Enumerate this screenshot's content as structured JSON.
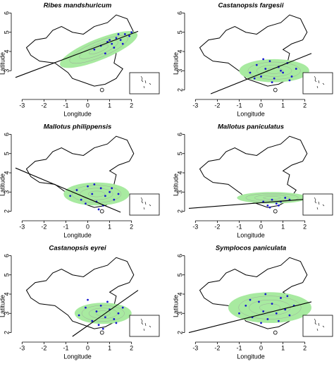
{
  "chart_data": [
    {
      "type": "scatter",
      "title": "Ribes mandshuricum",
      "xlabel": "Longitude",
      "ylabel": "Latitude",
      "xlim": [
        -3.3,
        2.3
      ],
      "ylim": [
        1.8,
        6.2
      ],
      "xticks": [
        -3,
        -2,
        -1,
        0,
        1,
        2
      ],
      "yticks": [
        3,
        4,
        5,
        6
      ],
      "ellipse": {
        "cx": 0.5,
        "cy": 4.1,
        "rx": 1.9,
        "ry": 0.55,
        "angle": -22,
        "color": "#a8eaa0"
      },
      "fit": {
        "x": [
          -3.3,
          2.3
        ],
        "y": [
          2.65,
          5.05
        ]
      },
      "point_color": "#1515d0",
      "x": [
        0.3,
        0.6,
        0.9,
        1.1,
        1.3,
        1.5,
        1.7,
        1.9,
        0.8,
        1.2,
        1.6,
        2.0,
        1.0,
        1.4
      ],
      "y": [
        4.1,
        4.3,
        4.5,
        4.4,
        4.7,
        4.6,
        4.9,
        4.8,
        3.9,
        4.2,
        4.4,
        5.0,
        4.6,
        4.9
      ]
    },
    {
      "type": "scatter",
      "title": "Castanopsis fargesii",
      "xlabel": "Longitude",
      "ylabel": "Latitude",
      "xlim": [
        -3.3,
        2.3
      ],
      "ylim": [
        1.8,
        6.2
      ],
      "xticks": [
        -3,
        -2,
        -1,
        0,
        1,
        2
      ],
      "yticks": [
        2,
        3,
        4,
        5,
        6
      ],
      "ellipse": {
        "cx": 0.6,
        "cy": 3.0,
        "rx": 1.6,
        "ry": 0.6,
        "angle": 0,
        "color": "#a8eaa0"
      },
      "fit": {
        "x": [
          -2.3,
          2.3
        ],
        "y": [
          1.8,
          3.9
        ]
      },
      "point_color": "#1515d0",
      "x": [
        -0.5,
        -0.2,
        0.0,
        0.2,
        0.4,
        0.6,
        0.8,
        1.0,
        1.2,
        1.4,
        1.6,
        0.1,
        0.5,
        0.9,
        1.3,
        -0.3
      ],
      "y": [
        2.9,
        3.3,
        2.7,
        3.1,
        3.5,
        2.6,
        3.2,
        2.9,
        3.4,
        2.7,
        3.1,
        3.6,
        2.4,
        3.0,
        2.5,
        2.6
      ]
    },
    {
      "type": "scatter",
      "title": "Mallotus philippensis",
      "xlabel": "Longitude",
      "ylabel": "Latitude",
      "xlim": [
        -3.3,
        2.3
      ],
      "ylim": [
        1.8,
        6.2
      ],
      "xticks": [
        -3,
        -2,
        -1,
        0,
        1,
        2
      ],
      "yticks": [
        2,
        3,
        4,
        5,
        6
      ],
      "ellipse": {
        "cx": 0.4,
        "cy": 2.9,
        "rx": 1.5,
        "ry": 0.6,
        "angle": 0,
        "color": "#a8eaa0"
      },
      "fit": {
        "x": [
          -3.3,
          1.5
        ],
        "y": [
          4.25,
          1.95
        ]
      },
      "point_color": "#1515d0",
      "x": [
        -0.8,
        -0.5,
        -0.3,
        0.0,
        0.2,
        0.4,
        0.6,
        0.8,
        1.0,
        1.2,
        1.4,
        -0.1,
        0.3,
        0.7,
        1.1,
        0.5
      ],
      "y": [
        2.8,
        3.1,
        2.6,
        3.3,
        2.9,
        2.5,
        3.2,
        2.8,
        3.0,
        2.6,
        2.9,
        2.4,
        3.4,
        2.3,
        3.2,
        2.1
      ]
    },
    {
      "type": "scatter",
      "title": "Mallotus paniculatus",
      "xlabel": "Longitude",
      "ylabel": "Latitude",
      "xlim": [
        -3.3,
        2.3
      ],
      "ylim": [
        1.8,
        6.2
      ],
      "xticks": [
        -3,
        -2,
        -1,
        0,
        1,
        2
      ],
      "yticks": [
        2,
        3,
        4,
        5,
        6
      ],
      "ellipse": {
        "cx": 0.5,
        "cy": 2.7,
        "rx": 1.6,
        "ry": 0.3,
        "angle": 0,
        "color": "#a8eaa0"
      },
      "fit": {
        "x": [
          -3.3,
          2.3
        ],
        "y": [
          2.15,
          2.65
        ]
      },
      "point_color": "#1515d0",
      "x": [
        0.1,
        0.3,
        0.5,
        0.7,
        0.9,
        1.1,
        1.3,
        0.4,
        0.8
      ],
      "y": [
        2.5,
        2.3,
        2.6,
        2.4,
        2.5,
        2.7,
        2.6,
        2.2,
        2.3
      ]
    },
    {
      "type": "scatter",
      "title": "Castanopsis eyrei",
      "xlabel": "Longitude",
      "ylabel": "Latitude",
      "xlim": [
        -3.3,
        2.3
      ],
      "ylim": [
        1.8,
        6.2
      ],
      "xticks": [
        -3,
        -2,
        -1,
        0,
        1,
        2
      ],
      "yticks": [
        2,
        3,
        4,
        5,
        6
      ],
      "ellipse": {
        "cx": 0.7,
        "cy": 3.0,
        "rx": 1.3,
        "ry": 0.55,
        "angle": 0,
        "color": "#a8eaa0"
      },
      "fit": {
        "x": [
          -0.7,
          2.3
        ],
        "y": [
          1.8,
          4.2
        ]
      },
      "point_color": "#1515d0",
      "x": [
        -0.4,
        -0.1,
        0.2,
        0.4,
        0.6,
        0.8,
        1.0,
        1.2,
        1.4,
        1.6,
        0.5,
        0.9,
        1.3,
        0.0,
        0.7
      ],
      "y": [
        2.9,
        3.3,
        2.6,
        3.1,
        3.4,
        2.8,
        3.2,
        2.7,
        3.0,
        3.3,
        2.4,
        3.6,
        2.5,
        3.7,
        2.2
      ]
    },
    {
      "type": "scatter",
      "title": "Symplocos paniculata",
      "xlabel": "Longitude",
      "ylabel": "Latitude",
      "xlim": [
        -3.3,
        2.3
      ],
      "ylim": [
        1.8,
        6.2
      ],
      "xticks": [
        -3,
        -2,
        -1,
        0,
        1,
        2
      ],
      "yticks": [
        2,
        3,
        4,
        5,
        6
      ],
      "ellipse": {
        "cx": 0.4,
        "cy": 3.3,
        "rx": 1.9,
        "ry": 0.8,
        "angle": 0,
        "color": "#a8eaa0"
      },
      "fit": {
        "x": [
          -3.3,
          2.3
        ],
        "y": [
          2.0,
          3.6
        ]
      },
      "point_color": "#1515d0",
      "x": [
        -1.0,
        -0.7,
        -0.4,
        -0.1,
        0.1,
        0.3,
        0.5,
        0.7,
        0.9,
        1.1,
        1.3,
        1.5,
        -0.5,
        0.2,
        0.8,
        1.2,
        0.0
      ],
      "y": [
        3.0,
        3.4,
        2.8,
        3.6,
        3.1,
        2.7,
        3.5,
        3.0,
        3.8,
        3.2,
        2.9,
        3.4,
        3.7,
        4.0,
        2.6,
        3.9,
        2.5
      ]
    }
  ]
}
